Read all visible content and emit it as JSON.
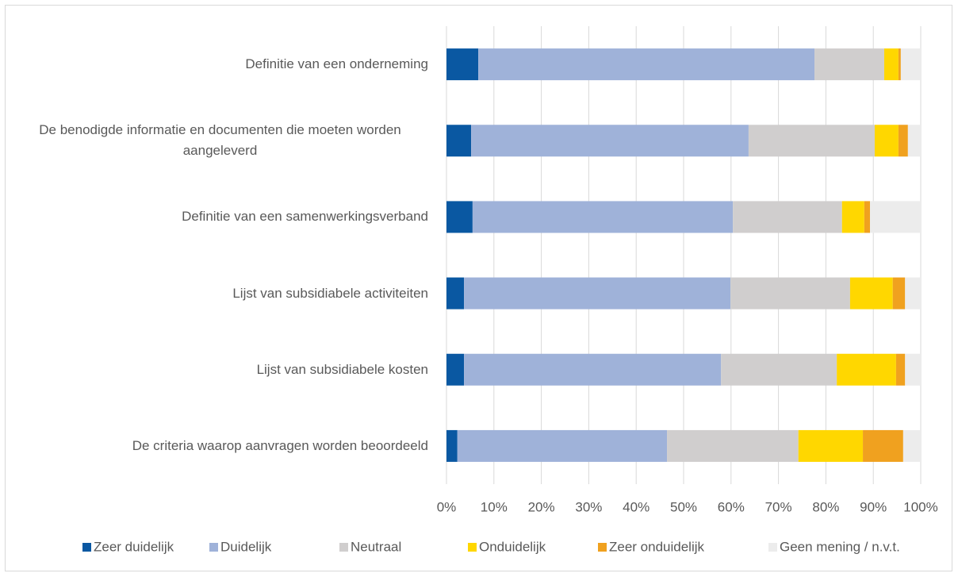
{
  "chart_data": {
    "type": "stacked_barh",
    "categories": [
      "Definitie van een onderneming",
      "De benodigde informatie en documenten die moeten worden aangeleverd",
      "Definitie van een samenwerkingsverband",
      "Lijst van subsidiabele activiteiten",
      "Lijst van subsidiabele kosten",
      "De criteria waarop aanvragen worden beoordeeld"
    ],
    "series": [
      {
        "name": "Zeer duidelijk",
        "color": "#0a58a2",
        "values": [
          6.7,
          5.2,
          5.5,
          3.7,
          3.7,
          2.3
        ]
      },
      {
        "name": "Duidelijk",
        "color": "#9fb2d9",
        "values": [
          70.9,
          58.5,
          54.9,
          56.2,
          54.2,
          44.2
        ]
      },
      {
        "name": "Neutraal",
        "color": "#d0cece",
        "values": [
          14.7,
          26.6,
          23.0,
          25.2,
          24.4,
          27.7
        ]
      },
      {
        "name": "Onduidelijk",
        "color": "#ffd700",
        "values": [
          3.0,
          5.0,
          4.7,
          9.0,
          12.5,
          13.6
        ]
      },
      {
        "name": "Zeer onduidelijk",
        "color": "#f0a11f",
        "values": [
          0.5,
          2.0,
          1.2,
          2.6,
          1.9,
          8.5
        ]
      },
      {
        "name": "Geen mening / n.v.t.",
        "color": "#ececec",
        "values": [
          4.2,
          2.7,
          10.7,
          3.3,
          3.3,
          3.7
        ]
      }
    ],
    "xlim": [
      0,
      100
    ],
    "xticks": [
      {
        "value": 0,
        "label": "0%"
      },
      {
        "value": 10,
        "label": "10%"
      },
      {
        "value": 20,
        "label": "20%"
      },
      {
        "value": 30,
        "label": "30%"
      },
      {
        "value": 40,
        "label": "40%"
      },
      {
        "value": 50,
        "label": "50%"
      },
      {
        "value": 60,
        "label": "60%"
      },
      {
        "value": 70,
        "label": "70%"
      },
      {
        "value": 80,
        "label": "80%"
      },
      {
        "value": 90,
        "label": "90%"
      },
      {
        "value": 100,
        "label": "100%"
      }
    ],
    "grid": true,
    "legend": "bottom"
  }
}
